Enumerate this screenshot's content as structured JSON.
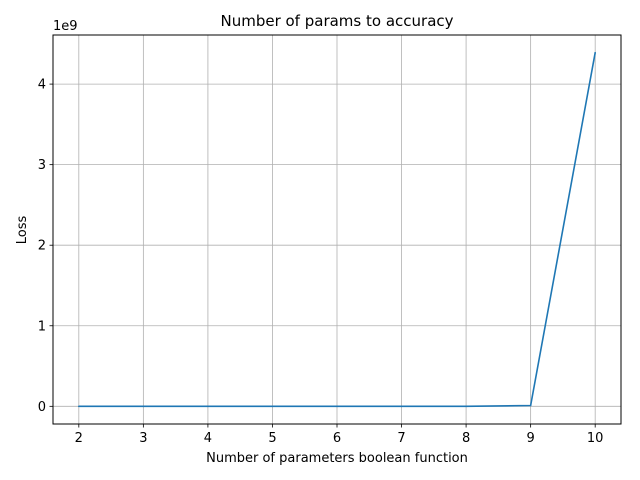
{
  "chart_data": {
    "type": "line",
    "title": "Number of params to accuracy",
    "xlabel": "Number of parameters boolean function",
    "ylabel": "Loss",
    "y_offset_label": "1e9",
    "x": [
      2,
      3,
      4,
      5,
      6,
      7,
      8,
      9,
      10
    ],
    "series": [
      {
        "values": [
          0,
          0,
          0,
          0,
          0,
          0,
          0,
          10000000,
          4390000000
        ],
        "color": "#1f77b4"
      }
    ],
    "x_ticks": [
      2,
      3,
      4,
      5,
      6,
      7,
      8,
      9,
      10
    ],
    "x_tick_labels": [
      "2",
      "3",
      "4",
      "5",
      "6",
      "7",
      "8",
      "9",
      "10"
    ],
    "y_ticks": [
      0,
      1000000000,
      2000000000,
      3000000000,
      4000000000
    ],
    "y_tick_labels": [
      "0",
      "1",
      "2",
      "3",
      "4"
    ],
    "xlim": [
      1.6,
      10.4
    ],
    "ylim": [
      -219500000,
      4609500000
    ],
    "grid": true
  }
}
